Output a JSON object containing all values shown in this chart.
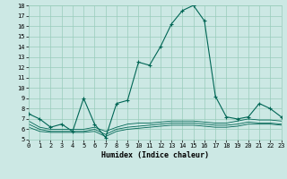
{
  "xlabel": "Humidex (Indice chaleur)",
  "bg_color": "#cce8e4",
  "grid_color": "#99ccbb",
  "line_color": "#006655",
  "xlim": [
    0,
    23
  ],
  "ylim": [
    5,
    18
  ],
  "xticks": [
    0,
    1,
    2,
    3,
    4,
    5,
    6,
    7,
    8,
    9,
    10,
    11,
    12,
    13,
    14,
    15,
    16,
    17,
    18,
    19,
    20,
    21,
    22,
    23
  ],
  "yticks": [
    5,
    6,
    7,
    8,
    9,
    10,
    11,
    12,
    13,
    14,
    15,
    16,
    17,
    18
  ],
  "series_main": [
    7.5,
    7.0,
    6.2,
    6.5,
    5.8,
    9.0,
    6.5,
    5.2,
    8.5,
    8.8,
    12.5,
    12.2,
    14.0,
    16.2,
    17.5,
    18.0,
    16.5,
    9.2,
    7.2,
    7.0,
    7.2,
    8.5,
    8.0,
    7.2
  ],
  "series_flat": [
    [
      6.5,
      6.0,
      5.8,
      5.8,
      5.8,
      5.8,
      6.0,
      5.5,
      6.0,
      6.2,
      6.3,
      6.4,
      6.5,
      6.6,
      6.6,
      6.6,
      6.5,
      6.4,
      6.4,
      6.5,
      6.7,
      6.6,
      6.6,
      6.5
    ],
    [
      6.2,
      5.8,
      5.7,
      5.7,
      5.7,
      5.7,
      5.8,
      5.3,
      5.8,
      6.0,
      6.1,
      6.2,
      6.3,
      6.4,
      6.4,
      6.4,
      6.3,
      6.2,
      6.2,
      6.3,
      6.5,
      6.5,
      6.5,
      6.4
    ],
    [
      6.8,
      6.2,
      6.0,
      6.0,
      6.0,
      6.0,
      6.2,
      5.8,
      6.2,
      6.5,
      6.6,
      6.6,
      6.7,
      6.8,
      6.8,
      6.8,
      6.7,
      6.6,
      6.6,
      6.8,
      7.0,
      6.9,
      6.9,
      6.8
    ]
  ]
}
